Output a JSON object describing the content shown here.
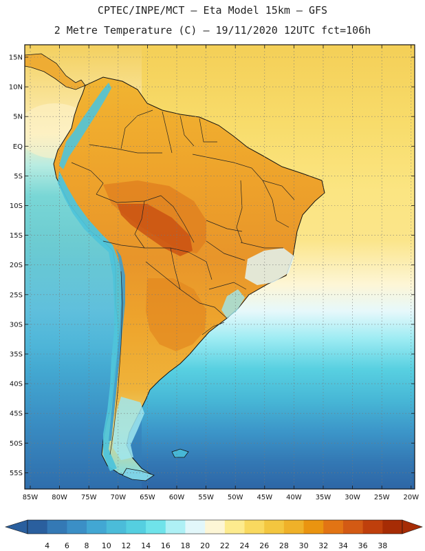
{
  "title_line1": "CPTEC/INPE/MCT –  Eta Model 15km – GFS",
  "title_line2": "2 Metre Temperature (C) – 19/11/2020 12UTC fct=106h",
  "lat_labels": [
    "15N",
    "10N",
    "5N",
    "EQ",
    "5S",
    "10S",
    "15S",
    "20S",
    "25S",
    "30S",
    "35S",
    "40S",
    "45S",
    "50S",
    "55S"
  ],
  "lon_labels": [
    "85W",
    "80W",
    "75W",
    "70W",
    "65W",
    "60W",
    "55W",
    "50W",
    "45W",
    "40W",
    "35W",
    "30W",
    "25W",
    "20W"
  ],
  "colorbar": {
    "values": [
      4,
      6,
      8,
      10,
      12,
      14,
      16,
      18,
      20,
      22,
      24,
      26,
      28,
      30,
      32,
      34,
      36,
      38
    ],
    "colors": [
      "#2a5f9e",
      "#3479b5",
      "#3b8fc6",
      "#42a7d3",
      "#4bbcd9",
      "#55cfe0",
      "#6fe3ea",
      "#aef0f5",
      "#e2f7fa",
      "#fdf6d6",
      "#fdeb8e",
      "#f9d95f",
      "#f3c63f",
      "#efb129",
      "#ea9410",
      "#e27414",
      "#d35a14",
      "#bf3f0c",
      "#a62c05"
    ],
    "low_color": "#2a5f9e",
    "high_color": "#a62c05"
  },
  "colors": {
    "ocean_north": "#f7d762",
    "ocean_mid": "#fdf2c8",
    "land_warm": "#eea72b",
    "land_hot": "#cc5514",
    "andes_cool": "#4fc4da"
  }
}
